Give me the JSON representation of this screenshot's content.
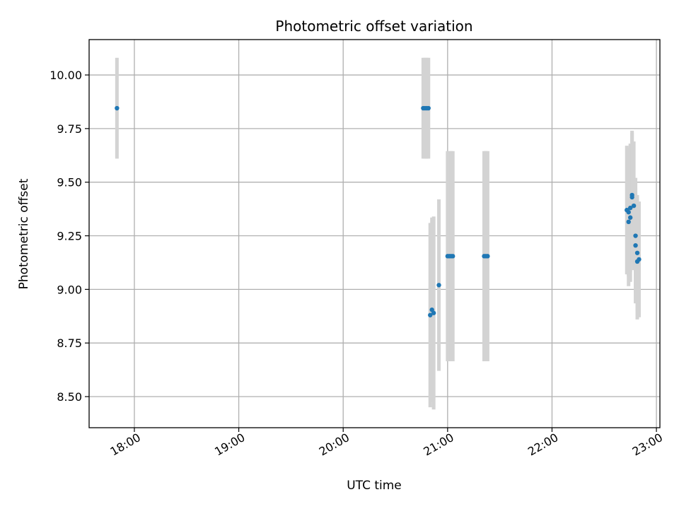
{
  "chart_data": {
    "type": "scatter",
    "title": "Photometric offset variation",
    "xlabel": "UTC time",
    "ylabel": "Photometric offset",
    "x_axis_type": "time",
    "x_ticks": [
      "18:00",
      "19:00",
      "20:00",
      "21:00",
      "22:00",
      "23:00"
    ],
    "xlim": [
      "17:34",
      "23:02"
    ],
    "y_ticks": [
      "8.50",
      "8.75",
      "9.00",
      "9.25",
      "9.50",
      "9.75",
      "10.00"
    ],
    "ylim": [
      8.355,
      10.165
    ],
    "grid": true,
    "colors": {
      "points": "#1f77b4",
      "error_bars": "#d3d3d3",
      "grid": "#b0b0b0"
    },
    "points": [
      {
        "x": "17:50",
        "y": 9.845,
        "yerr": 0.235
      },
      {
        "x": "20:46",
        "y": 9.845,
        "yerr": 0.235
      },
      {
        "x": "20:47",
        "y": 9.845,
        "yerr": 0.235
      },
      {
        "x": "20:48",
        "y": 9.845,
        "yerr": 0.235
      },
      {
        "x": "20:49",
        "y": 9.845,
        "yerr": 0.235
      },
      {
        "x": "20:50",
        "y": 8.88,
        "yerr": 0.43
      },
      {
        "x": "20:51",
        "y": 8.905,
        "yerr": 0.43
      },
      {
        "x": "20:52",
        "y": 8.89,
        "yerr": 0.45
      },
      {
        "x": "20:55",
        "y": 9.02,
        "yerr": 0.4
      },
      {
        "x": "21:00",
        "y": 9.155,
        "yerr": 0.49
      },
      {
        "x": "21:01",
        "y": 9.155,
        "yerr": 0.49
      },
      {
        "x": "21:02",
        "y": 9.155,
        "yerr": 0.49
      },
      {
        "x": "21:03",
        "y": 9.155,
        "yerr": 0.49
      },
      {
        "x": "21:21",
        "y": 9.155,
        "yerr": 0.49
      },
      {
        "x": "21:22",
        "y": 9.155,
        "yerr": 0.49
      },
      {
        "x": "21:23",
        "y": 9.155,
        "yerr": 0.49
      },
      {
        "x": "22:43",
        "y": 9.37,
        "yerr": 0.3
      },
      {
        "x": "22:44",
        "y": 9.315,
        "yerr": 0.3
      },
      {
        "x": "22:44",
        "y": 9.36,
        "yerr": 0.3
      },
      {
        "x": "22:45",
        "y": 9.335,
        "yerr": 0.3
      },
      {
        "x": "22:45",
        "y": 9.38,
        "yerr": 0.3
      },
      {
        "x": "22:46",
        "y": 9.44,
        "yerr": 0.3
      },
      {
        "x": "22:46",
        "y": 9.43,
        "yerr": 0.3
      },
      {
        "x": "22:47",
        "y": 9.39,
        "yerr": 0.3
      },
      {
        "x": "22:48",
        "y": 9.25,
        "yerr": 0.27
      },
      {
        "x": "22:48",
        "y": 9.205,
        "yerr": 0.27
      },
      {
        "x": "22:49",
        "y": 9.13,
        "yerr": 0.27
      },
      {
        "x": "22:49",
        "y": 9.17,
        "yerr": 0.27
      },
      {
        "x": "22:50",
        "y": 9.14,
        "yerr": 0.27
      }
    ]
  }
}
